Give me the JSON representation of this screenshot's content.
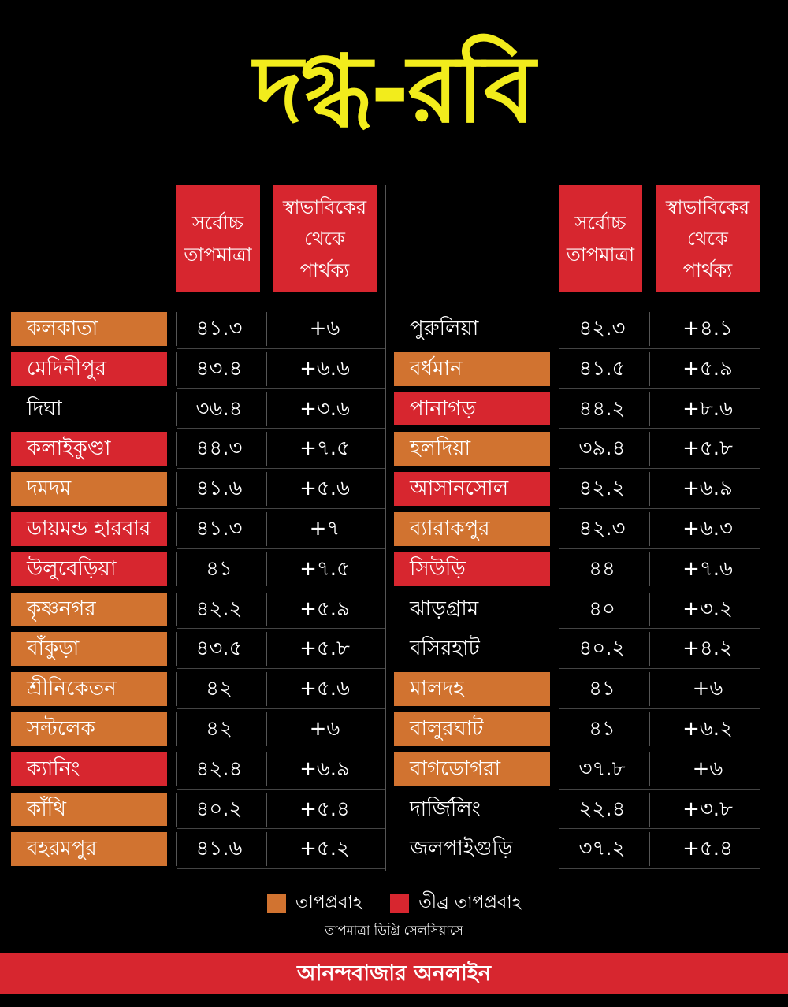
{
  "title": "দগ্ধ-রবি",
  "headers": {
    "max_temp": [
      "সর্বোচ্চ",
      "তাপমাত্রা"
    ],
    "diff": [
      "স্বাভাবিকের",
      "থেকে",
      "পার্থক্য"
    ]
  },
  "left": [
    {
      "name": "কলকাতা",
      "temp": "৪১.৩",
      "diff": "+৬",
      "status": "heatwave"
    },
    {
      "name": "মেদিনীপুর",
      "temp": "৪৩.৪",
      "diff": "+৬.৬",
      "status": "severe"
    },
    {
      "name": "দিঘা",
      "temp": "৩৬.৪",
      "diff": "+৩.৬",
      "status": "none"
    },
    {
      "name": "কলাইকুণ্ডা",
      "temp": "৪৪.৩",
      "diff": "+৭.৫",
      "status": "severe"
    },
    {
      "name": "দমদম",
      "temp": "৪১.৬",
      "diff": "+৫.৬",
      "status": "heatwave"
    },
    {
      "name": "ডায়মন্ড হারবার",
      "temp": "৪১.৩",
      "diff": "+৭",
      "status": "severe"
    },
    {
      "name": "উলুবেড়িয়া",
      "temp": "৪১",
      "diff": "+৭.৫",
      "status": "severe"
    },
    {
      "name": "কৃষ্ণনগর",
      "temp": "৪২.২",
      "diff": "+৫.৯",
      "status": "heatwave"
    },
    {
      "name": "বাঁকুড়া",
      "temp": "৪৩.৫",
      "diff": "+৫.৮",
      "status": "heatwave"
    },
    {
      "name": "শ্রীনিকেতন",
      "temp": "৪২",
      "diff": "+৫.৬",
      "status": "heatwave"
    },
    {
      "name": "সল্টলেক",
      "temp": "৪২",
      "diff": "+৬",
      "status": "heatwave"
    },
    {
      "name": "ক্যানিং",
      "temp": "৪২.৪",
      "diff": "+৬.৯",
      "status": "severe"
    },
    {
      "name": "কাঁথি",
      "temp": "৪০.২",
      "diff": "+৫.৪",
      "status": "heatwave"
    },
    {
      "name": "বহরমপুর",
      "temp": "৪১.৬",
      "diff": "+৫.২",
      "status": "heatwave"
    }
  ],
  "right": [
    {
      "name": "পুরুলিয়া",
      "temp": "৪২.৩",
      "diff": "+৪.১",
      "status": "none"
    },
    {
      "name": "বর্ধমান",
      "temp": "৪১.৫",
      "diff": "+৫.৯",
      "status": "heatwave"
    },
    {
      "name": "পানাগড়",
      "temp": "৪৪.২",
      "diff": "+৮.৬",
      "status": "severe"
    },
    {
      "name": "হলদিয়া",
      "temp": "৩৯.৪",
      "diff": "+৫.৮",
      "status": "heatwave"
    },
    {
      "name": "আসানসোল",
      "temp": "৪২.২",
      "diff": "+৬.৯",
      "status": "severe"
    },
    {
      "name": "ব্যারাকপুর",
      "temp": "৪২.৩",
      "diff": "+৬.৩",
      "status": "heatwave"
    },
    {
      "name": "সিউড়ি",
      "temp": "৪৪",
      "diff": "+৭.৬",
      "status": "severe"
    },
    {
      "name": "ঝাড়গ্রাম",
      "temp": "৪০",
      "diff": "+৩.২",
      "status": "none"
    },
    {
      "name": "বসিরহাট",
      "temp": "৪০.২",
      "diff": "+৪.২",
      "status": "none"
    },
    {
      "name": "মালদহ",
      "temp": "৪১",
      "diff": "+৬",
      "status": "heatwave"
    },
    {
      "name": "বালুরঘাট",
      "temp": "৪১",
      "diff": "+৬.২",
      "status": "heatwave"
    },
    {
      "name": "বাগডোগরা",
      "temp": "৩৭.৮",
      "diff": "+৬",
      "status": "heatwave"
    },
    {
      "name": "দার্জিলিং",
      "temp": "২২.৪",
      "diff": "+৩.৮",
      "status": "none"
    },
    {
      "name": "জলপাইগুড়ি",
      "temp": "৩৭.২",
      "diff": "+৫.৪",
      "status": "none"
    }
  ],
  "legend": {
    "heatwave": {
      "label": "তাপপ্রবাহ",
      "color": "#d17330"
    },
    "severe": {
      "label": "তীব্র তাপপ্রবাহ",
      "color": "#d7262f"
    }
  },
  "note": "তাপমাত্রা ডিগ্রি সেলসিয়াসে",
  "footer": "আনন্দবাজার অনলাইন"
}
